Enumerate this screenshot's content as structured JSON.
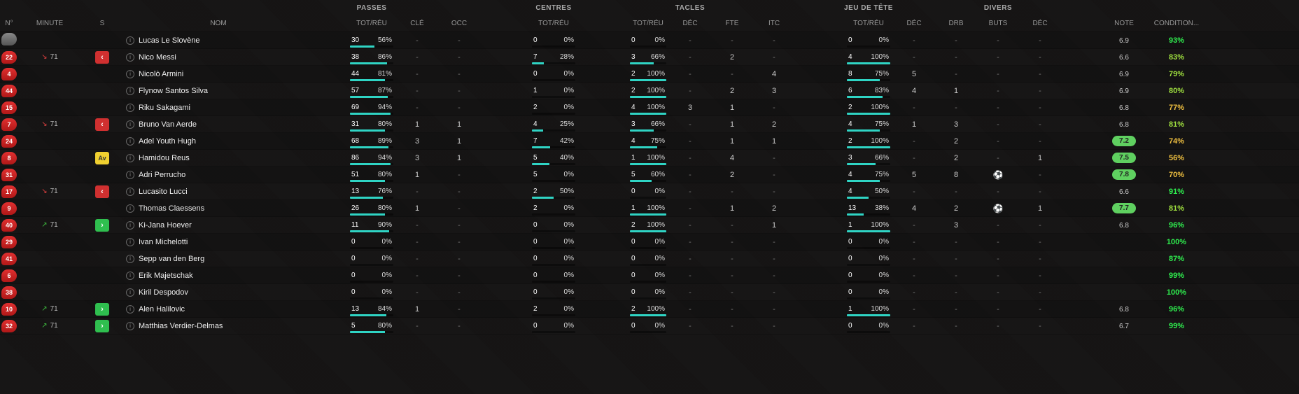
{
  "headers": {
    "no": "N°",
    "minute": "MINUTE",
    "s": "S",
    "nom": "NOM",
    "totreu": "TOT/RÉU",
    "cle": "CLÉ",
    "occ": "OCC",
    "dec": "DÉC",
    "fte": "FTE",
    "itc": "ITC",
    "drb": "DRB",
    "buts": "BUTS",
    "note": "NOTE",
    "condition": "CONDITION..."
  },
  "groups": {
    "passes": "PASSES",
    "centres": "CENTRES",
    "tacles": "TACLES",
    "jeu": "JEU DE TÊTE",
    "divers": "DIVERS"
  },
  "note_colors": {
    "green": "#5fd060",
    "lime": "#9fe050",
    "yellow": "#f0d040"
  },
  "players": [
    {
      "num": "",
      "numStyle": "gk",
      "sub": null,
      "chip": null,
      "name": "Lucas Le Slovène",
      "passes": {
        "tot": 30,
        "pct": 56
      },
      "cle": "-",
      "occ": "-",
      "centres": {
        "tot": 0,
        "pct": 0
      },
      "blank1": "",
      "tacles": {
        "tot": 0,
        "pct": 0
      },
      "dec1": "-",
      "fte": "-",
      "itc": "-",
      "blank2": "",
      "jeu": {
        "tot": 0,
        "pct": 0
      },
      "dec2": "-",
      "drb": "-",
      "buts": "-",
      "dec3": "-",
      "note": "6.9",
      "notePill": false,
      "cond": "93%",
      "condClass": "cond-green"
    },
    {
      "num": "22",
      "numStyle": "red",
      "sub": {
        "dir": "off",
        "min": 71
      },
      "chip": "off",
      "name": "Nico Messi",
      "passes": {
        "tot": 38,
        "pct": 86
      },
      "cle": "-",
      "occ": "-",
      "centres": {
        "tot": 7,
        "pct": 28
      },
      "blank1": "",
      "tacles": {
        "tot": 3,
        "pct": 66
      },
      "dec1": "-",
      "fte": "2",
      "itc": "-",
      "blank2": "",
      "jeu": {
        "tot": 4,
        "pct": 100
      },
      "dec2": "-",
      "drb": "-",
      "buts": "-",
      "dec3": "-",
      "note": "6.6",
      "notePill": false,
      "cond": "83%",
      "condClass": "cond-lime"
    },
    {
      "num": "4",
      "numStyle": "red",
      "sub": null,
      "chip": null,
      "name": "Nicolò Armini",
      "passes": {
        "tot": 44,
        "pct": 81
      },
      "cle": "-",
      "occ": "-",
      "centres": {
        "tot": 0,
        "pct": 0
      },
      "blank1": "",
      "tacles": {
        "tot": 2,
        "pct": 100
      },
      "dec1": "-",
      "fte": "-",
      "itc": "4",
      "blank2": "",
      "jeu": {
        "tot": 8,
        "pct": 75
      },
      "dec2": "5",
      "drb": "-",
      "buts": "-",
      "dec3": "-",
      "note": "6.9",
      "notePill": false,
      "cond": "79%",
      "condClass": "cond-lime"
    },
    {
      "num": "44",
      "numStyle": "red",
      "sub": null,
      "chip": null,
      "name": "Flynow Santos Silva",
      "passes": {
        "tot": 57,
        "pct": 87
      },
      "cle": "-",
      "occ": "-",
      "centres": {
        "tot": 1,
        "pct": 0
      },
      "blank1": "",
      "tacles": {
        "tot": 2,
        "pct": 100
      },
      "dec1": "-",
      "fte": "2",
      "itc": "3",
      "blank2": "",
      "jeu": {
        "tot": 6,
        "pct": 83
      },
      "dec2": "4",
      "drb": "1",
      "buts": "-",
      "dec3": "-",
      "note": "6.9",
      "notePill": false,
      "cond": "80%",
      "condClass": "cond-lime"
    },
    {
      "num": "15",
      "numStyle": "red",
      "sub": null,
      "chip": null,
      "name": "Riku Sakagami",
      "passes": {
        "tot": 69,
        "pct": 94
      },
      "cle": "-",
      "occ": "-",
      "centres": {
        "tot": 2,
        "pct": 0
      },
      "blank1": "",
      "tacles": {
        "tot": 4,
        "pct": 100
      },
      "dec1": "3",
      "fte": "1",
      "itc": "-",
      "blank2": "",
      "jeu": {
        "tot": 2,
        "pct": 100
      },
      "dec2": "-",
      "drb": "-",
      "buts": "-",
      "dec3": "-",
      "note": "6.8",
      "notePill": false,
      "cond": "77%",
      "condClass": "cond-yel"
    },
    {
      "num": "7",
      "numStyle": "red",
      "sub": {
        "dir": "off",
        "min": 71
      },
      "chip": "off",
      "name": "Bruno Van Aerde",
      "passes": {
        "tot": 31,
        "pct": 80
      },
      "cle": "1",
      "occ": "1",
      "centres": {
        "tot": 4,
        "pct": 25
      },
      "blank1": "",
      "tacles": {
        "tot": 3,
        "pct": 66
      },
      "dec1": "-",
      "fte": "1",
      "itc": "2",
      "blank2": "",
      "jeu": {
        "tot": 4,
        "pct": 75
      },
      "dec2": "1",
      "drb": "3",
      "buts": "-",
      "dec3": "-",
      "note": "6.8",
      "notePill": false,
      "cond": "81%",
      "condClass": "cond-lime"
    },
    {
      "num": "24",
      "numStyle": "red",
      "sub": null,
      "chip": null,
      "name": "Adel Youth Hugh",
      "passes": {
        "tot": 68,
        "pct": 89
      },
      "cle": "3",
      "occ": "1",
      "centres": {
        "tot": 7,
        "pct": 42
      },
      "blank1": "",
      "tacles": {
        "tot": 4,
        "pct": 75
      },
      "dec1": "-",
      "fte": "1",
      "itc": "1",
      "blank2": "",
      "jeu": {
        "tot": 2,
        "pct": 100
      },
      "dec2": "-",
      "drb": "2",
      "buts": "-",
      "dec3": "-",
      "note": "7.2",
      "notePill": true,
      "noteColor": "#5fd060",
      "cond": "74%",
      "condClass": "cond-yel"
    },
    {
      "num": "8",
      "numStyle": "red",
      "sub": null,
      "chip": "av",
      "name": "Hamidou Reus",
      "passes": {
        "tot": 86,
        "pct": 94
      },
      "cle": "3",
      "occ": "1",
      "centres": {
        "tot": 5,
        "pct": 40
      },
      "blank1": "",
      "tacles": {
        "tot": 1,
        "pct": 100
      },
      "dec1": "-",
      "fte": "4",
      "itc": "-",
      "blank2": "",
      "jeu": {
        "tot": 3,
        "pct": 66
      },
      "dec2": "-",
      "drb": "2",
      "buts": "-",
      "dec3": "1",
      "note": "7.5",
      "notePill": true,
      "noteColor": "#5fd060",
      "cond": "56%",
      "condClass": "cond-yel"
    },
    {
      "num": "31",
      "numStyle": "red",
      "sub": null,
      "chip": null,
      "name": "Adri Perrucho",
      "passes": {
        "tot": 51,
        "pct": 80
      },
      "cle": "1",
      "occ": "-",
      "centres": {
        "tot": 5,
        "pct": 0
      },
      "blank1": "",
      "tacles": {
        "tot": 5,
        "pct": 60
      },
      "dec1": "-",
      "fte": "2",
      "itc": "-",
      "blank2": "",
      "jeu": {
        "tot": 4,
        "pct": 75
      },
      "dec2": "5",
      "drb": "8",
      "buts": "goal",
      "dec3": "-",
      "note": "7.8",
      "notePill": true,
      "noteColor": "#5fd060",
      "cond": "70%",
      "condClass": "cond-yel"
    },
    {
      "num": "17",
      "numStyle": "red",
      "sub": {
        "dir": "off",
        "min": 71
      },
      "chip": "off",
      "name": "Lucasito Lucci",
      "passes": {
        "tot": 13,
        "pct": 76
      },
      "cle": "-",
      "occ": "-",
      "centres": {
        "tot": 2,
        "pct": 50
      },
      "blank1": "",
      "tacles": {
        "tot": 0,
        "pct": 0
      },
      "dec1": "-",
      "fte": "-",
      "itc": "-",
      "blank2": "",
      "jeu": {
        "tot": 4,
        "pct": 50
      },
      "dec2": "-",
      "drb": "-",
      "buts": "-",
      "dec3": "-",
      "note": "6.6",
      "notePill": false,
      "cond": "91%",
      "condClass": "cond-green"
    },
    {
      "num": "9",
      "numStyle": "red",
      "sub": null,
      "chip": null,
      "name": "Thomas Claessens",
      "passes": {
        "tot": 26,
        "pct": 80
      },
      "cle": "1",
      "occ": "-",
      "centres": {
        "tot": 2,
        "pct": 0
      },
      "blank1": "",
      "tacles": {
        "tot": 1,
        "pct": 100
      },
      "dec1": "-",
      "fte": "1",
      "itc": "2",
      "blank2": "",
      "jeu": {
        "tot": 13,
        "pct": 38
      },
      "dec2": "4",
      "drb": "2",
      "buts": "goal",
      "dec3": "1",
      "note": "7.7",
      "notePill": true,
      "noteColor": "#5fd060",
      "cond": "81%",
      "condClass": "cond-lime"
    },
    {
      "num": "40",
      "numStyle": "red",
      "sub": {
        "dir": "on",
        "min": 71
      },
      "chip": "on",
      "name": "Ki-Jana Hoever",
      "passes": {
        "tot": 11,
        "pct": 90
      },
      "cle": "-",
      "occ": "-",
      "centres": {
        "tot": 0,
        "pct": 0
      },
      "blank1": "",
      "tacles": {
        "tot": 2,
        "pct": 100
      },
      "dec1": "-",
      "fte": "-",
      "itc": "1",
      "blank2": "",
      "jeu": {
        "tot": 1,
        "pct": 100
      },
      "dec2": "-",
      "drb": "3",
      "buts": "-",
      "dec3": "-",
      "note": "6.8",
      "notePill": false,
      "cond": "96%",
      "condClass": "cond-green"
    },
    {
      "num": "29",
      "numStyle": "red",
      "sub": null,
      "chip": null,
      "name": "Ivan Michelotti",
      "passes": {
        "tot": 0,
        "pct": 0
      },
      "cle": "-",
      "occ": "-",
      "centres": {
        "tot": 0,
        "pct": 0
      },
      "blank1": "",
      "tacles": {
        "tot": 0,
        "pct": 0
      },
      "dec1": "-",
      "fte": "-",
      "itc": "-",
      "blank2": "",
      "jeu": {
        "tot": 0,
        "pct": 0
      },
      "dec2": "-",
      "drb": "-",
      "buts": "-",
      "dec3": "-",
      "note": "",
      "notePill": false,
      "cond": "100%",
      "condClass": "cond-green"
    },
    {
      "num": "41",
      "numStyle": "red",
      "sub": null,
      "chip": null,
      "name": "Sepp van den Berg",
      "passes": {
        "tot": 0,
        "pct": 0
      },
      "cle": "-",
      "occ": "-",
      "centres": {
        "tot": 0,
        "pct": 0
      },
      "blank1": "",
      "tacles": {
        "tot": 0,
        "pct": 0
      },
      "dec1": "-",
      "fte": "-",
      "itc": "-",
      "blank2": "",
      "jeu": {
        "tot": 0,
        "pct": 0
      },
      "dec2": "-",
      "drb": "-",
      "buts": "-",
      "dec3": "-",
      "note": "",
      "notePill": false,
      "cond": "87%",
      "condClass": "cond-green"
    },
    {
      "num": "6",
      "numStyle": "red",
      "sub": null,
      "chip": null,
      "name": "Erik Majetschak",
      "passes": {
        "tot": 0,
        "pct": 0
      },
      "cle": "-",
      "occ": "-",
      "centres": {
        "tot": 0,
        "pct": 0
      },
      "blank1": "",
      "tacles": {
        "tot": 0,
        "pct": 0
      },
      "dec1": "-",
      "fte": "-",
      "itc": "-",
      "blank2": "",
      "jeu": {
        "tot": 0,
        "pct": 0
      },
      "dec2": "-",
      "drb": "-",
      "buts": "-",
      "dec3": "-",
      "note": "",
      "notePill": false,
      "cond": "99%",
      "condClass": "cond-green"
    },
    {
      "num": "38",
      "numStyle": "red",
      "sub": null,
      "chip": null,
      "name": "Kiril Despodov",
      "passes": {
        "tot": 0,
        "pct": 0
      },
      "cle": "-",
      "occ": "-",
      "centres": {
        "tot": 0,
        "pct": 0
      },
      "blank1": "",
      "tacles": {
        "tot": 0,
        "pct": 0
      },
      "dec1": "-",
      "fte": "-",
      "itc": "-",
      "blank2": "",
      "jeu": {
        "tot": 0,
        "pct": 0
      },
      "dec2": "-",
      "drb": "-",
      "buts": "-",
      "dec3": "-",
      "note": "",
      "notePill": false,
      "cond": "100%",
      "condClass": "cond-green"
    },
    {
      "num": "10",
      "numStyle": "red",
      "sub": {
        "dir": "on",
        "min": 71
      },
      "chip": "on",
      "name": "Alen Halilovic",
      "passes": {
        "tot": 13,
        "pct": 84
      },
      "cle": "1",
      "occ": "-",
      "centres": {
        "tot": 2,
        "pct": 0
      },
      "blank1": "",
      "tacles": {
        "tot": 2,
        "pct": 100
      },
      "dec1": "-",
      "fte": "-",
      "itc": "-",
      "blank2": "",
      "jeu": {
        "tot": 1,
        "pct": 100
      },
      "dec2": "-",
      "drb": "-",
      "buts": "-",
      "dec3": "-",
      "note": "6.8",
      "notePill": false,
      "cond": "96%",
      "condClass": "cond-green"
    },
    {
      "num": "32",
      "numStyle": "red",
      "sub": {
        "dir": "on",
        "min": 71
      },
      "chip": "on",
      "name": "Matthias Verdier-Delmas",
      "passes": {
        "tot": 5,
        "pct": 80
      },
      "cle": "-",
      "occ": "-",
      "centres": {
        "tot": 0,
        "pct": 0
      },
      "blank1": "",
      "tacles": {
        "tot": 0,
        "pct": 0
      },
      "dec1": "-",
      "fte": "-",
      "itc": "-",
      "blank2": "",
      "jeu": {
        "tot": 0,
        "pct": 0
      },
      "dec2": "-",
      "drb": "-",
      "buts": "-",
      "dec3": "-",
      "note": "6.7",
      "notePill": false,
      "cond": "99%",
      "condClass": "cond-green"
    }
  ]
}
